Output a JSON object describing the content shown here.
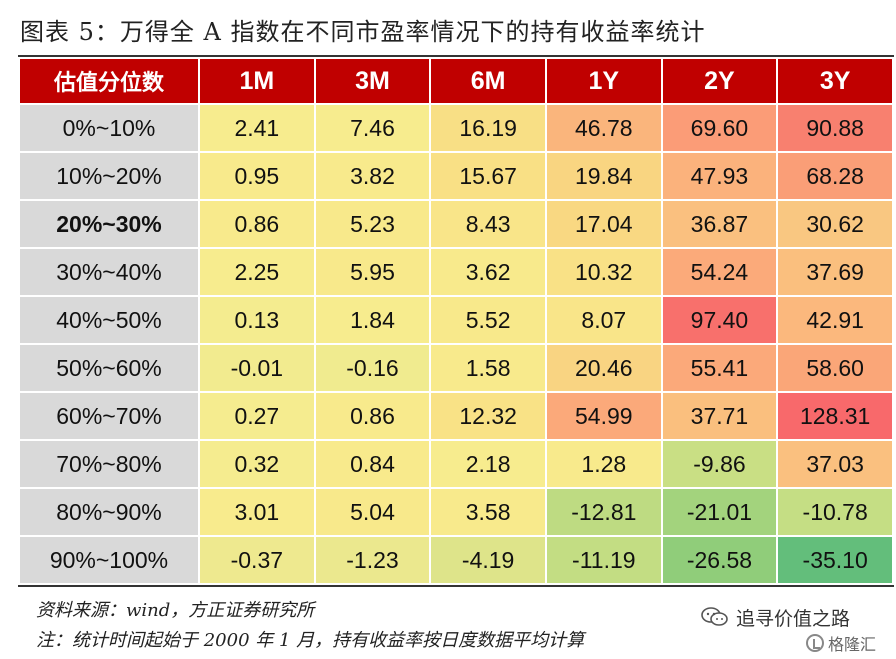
{
  "title": "图表 5：万得全 A 指数在不同市盈率情况下的持有收益率统计",
  "table": {
    "corner": "估值分位数",
    "columns": [
      "1M",
      "3M",
      "6M",
      "1Y",
      "2Y",
      "3Y"
    ],
    "rows": [
      {
        "label": "0%~10%",
        "bold": false,
        "values": [
          "2.41",
          "7.46",
          "16.19",
          "46.78",
          "69.60",
          "90.88"
        ],
        "colors": [
          "#f7ec8e",
          "#f7ec8e",
          "#f8df85",
          "#fab57c",
          "#fb9c77",
          "#f8806f"
        ]
      },
      {
        "label": "10%~20%",
        "bold": false,
        "values": [
          "0.95",
          "3.82",
          "15.67",
          "19.84",
          "47.93",
          "68.28"
        ],
        "colors": [
          "#f8ea8c",
          "#f8ea8c",
          "#f9e085",
          "#f9d581",
          "#fbb27c",
          "#fa9e77"
        ]
      },
      {
        "label": "20%~30%",
        "bold": true,
        "values": [
          "0.86",
          "5.23",
          "8.43",
          "17.04",
          "36.87",
          "30.62"
        ],
        "colors": [
          "#f8ea8c",
          "#f8e98b",
          "#f9e589",
          "#f9d882",
          "#fac07f",
          "#f9c781"
        ]
      },
      {
        "label": "30%~40%",
        "bold": false,
        "values": [
          "2.25",
          "5.95",
          "3.62",
          "10.32",
          "54.24",
          "37.69"
        ],
        "colors": [
          "#f7ec8e",
          "#f8e98b",
          "#f8ea8c",
          "#f9e186",
          "#fbaa7a",
          "#fabf7e"
        ]
      },
      {
        "label": "40%~50%",
        "bold": false,
        "values": [
          "0.13",
          "1.84",
          "5.52",
          "8.07",
          "97.40",
          "42.91"
        ],
        "colors": [
          "#f4ec8f",
          "#f7ec8e",
          "#f8e98b",
          "#f9e589",
          "#f8706c",
          "#fbb87d"
        ]
      },
      {
        "label": "50%~60%",
        "bold": false,
        "values": [
          "-0.01",
          "-0.16",
          "1.58",
          "20.46",
          "55.41",
          "58.60"
        ],
        "colors": [
          "#f2eb8f",
          "#f0eb8f",
          "#f8ea8c",
          "#f9d482",
          "#fba97a",
          "#faa678"
        ]
      },
      {
        "label": "60%~70%",
        "bold": false,
        "values": [
          "0.27",
          "0.86",
          "12.32",
          "54.99",
          "37.71",
          "128.31"
        ],
        "colors": [
          "#f5ec8f",
          "#f8ea8c",
          "#f9e286",
          "#fba97a",
          "#fabf7e",
          "#f8696b"
        ]
      },
      {
        "label": "70%~80%",
        "bold": false,
        "values": [
          "0.32",
          "0.84",
          "2.18",
          "1.28",
          "-9.86",
          "37.03"
        ],
        "colors": [
          "#f5ec8f",
          "#f8ea8c",
          "#f7ec8e",
          "#f8ea8c",
          "#c9df84",
          "#fac07f"
        ]
      },
      {
        "label": "80%~90%",
        "bold": false,
        "values": [
          "3.01",
          "5.04",
          "3.58",
          "-12.81",
          "-21.01",
          "-10.78"
        ],
        "colors": [
          "#f8eb8d",
          "#f8e98b",
          "#f8ea8c",
          "#bedb82",
          "#a3d37d",
          "#c5de84"
        ]
      },
      {
        "label": "90%~100%",
        "bold": false,
        "values": [
          "-0.37",
          "-1.23",
          "-4.19",
          "-11.19",
          "-26.58",
          "-35.10"
        ],
        "colors": [
          "#eee98f",
          "#ebe88e",
          "#dee48a",
          "#c3dd83",
          "#90cd7a",
          "#63be7b"
        ]
      }
    ]
  },
  "notes": {
    "source": "资料来源：wind，方正证券研究所",
    "remark": "注：统计时间起始于 2000 年 1 月，持有收益率按日度数据平均计算"
  },
  "watermark": {
    "label": "追寻价值之路",
    "icon": "wechat-icon"
  },
  "brand": {
    "label": "格隆汇",
    "icon": "gelonghui-logo-icon"
  }
}
